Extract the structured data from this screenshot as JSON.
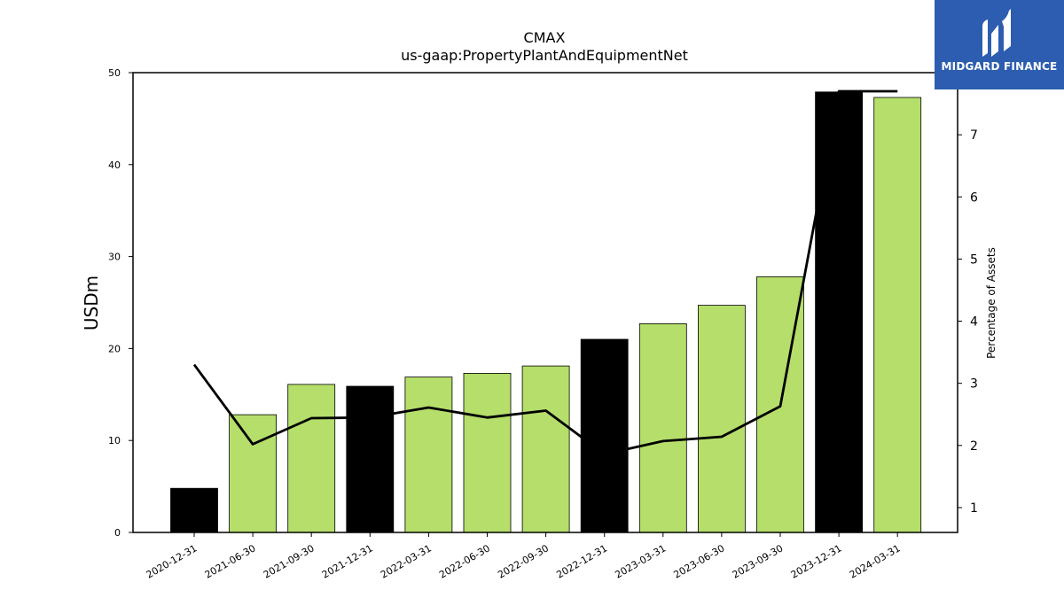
{
  "chart_data": {
    "type": "bar",
    "title": "CMAX",
    "subtitle": "us-gaap:PropertyPlantAndEquipmentNet",
    "ylabel": "USDm",
    "y2label": "Percentage of Assets",
    "ylim": [
      0,
      50
    ],
    "y2lim": [
      0.6,
      8.0
    ],
    "yticks": [
      0,
      10,
      20,
      30,
      40,
      50
    ],
    "y2ticks": [
      1,
      2,
      3,
      4,
      5,
      6,
      7
    ],
    "categories": [
      "2020-12-31",
      "2021-06-30",
      "2021-09-30",
      "2021-12-31",
      "2022-03-31",
      "2022-06-30",
      "2022-09-30",
      "2022-12-31",
      "2023-03-31",
      "2023-06-30",
      "2023-09-30",
      "2023-12-31",
      "2024-03-31"
    ],
    "values": [
      4.8,
      12.8,
      16.1,
      15.9,
      16.9,
      17.3,
      18.1,
      21.0,
      22.7,
      24.7,
      27.8,
      47.9,
      47.3
    ],
    "bar_colors": [
      "#000000",
      "#b5de6b",
      "#b5de6b",
      "#000000",
      "#b5de6b",
      "#b5de6b",
      "#b5de6b",
      "#000000",
      "#b5de6b",
      "#b5de6b",
      "#b5de6b",
      "#000000",
      "#b5de6b"
    ],
    "series": [
      {
        "values": [
          3.3,
          2.02,
          2.44,
          2.45,
          2.61,
          2.45,
          2.56,
          1.86,
          2.07,
          2.14,
          2.63,
          7.7,
          7.7
        ]
      }
    ],
    "line_color": "#000000"
  },
  "logo": {
    "text": "MIDGARD FINANCE",
    "color": "#2d5db0"
  }
}
